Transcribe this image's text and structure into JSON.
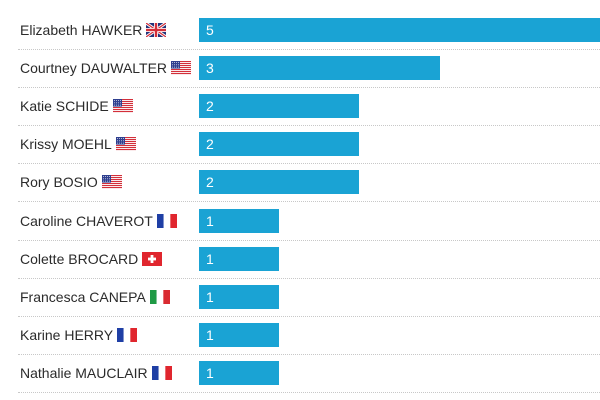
{
  "chart_data": {
    "type": "bar",
    "orientation": "horizontal",
    "title": "",
    "xlabel": "",
    "ylabel": "",
    "xlim": [
      0,
      5
    ],
    "grid": false,
    "categories": [
      "Elizabeth HAWKER",
      "Courtney DAUWALTER",
      "Katie SCHIDE",
      "Krissy MOEHL",
      "Rory BOSIO",
      "Caroline CHAVEROT",
      "Colette BROCARD",
      "Francesca CANEPA",
      "Karine HERRY",
      "Nathalie MAUCLAIR"
    ],
    "flags": [
      "GB",
      "US",
      "US",
      "US",
      "US",
      "FR",
      "CH",
      "IT",
      "FR",
      "FR"
    ],
    "values": [
      5,
      3,
      2,
      2,
      2,
      1,
      1,
      1,
      1,
      1
    ],
    "bar_color": "#1aa3d4",
    "value_label_color": "#ffffff",
    "text_color": "#2b2b2b"
  }
}
